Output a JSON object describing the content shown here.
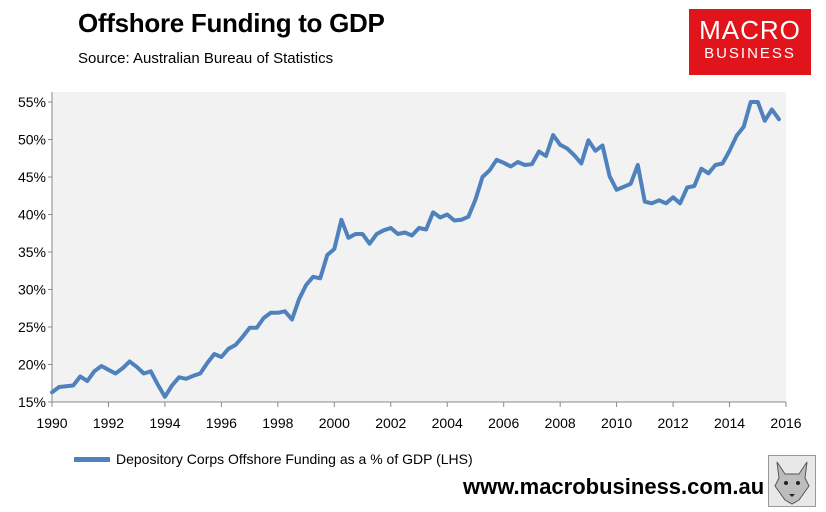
{
  "header": {
    "title": "Offshore Funding to GDP",
    "subtitle": "Source:  Australian Bureau of Statistics"
  },
  "logo": {
    "line1": "MACRO",
    "line2": "BUSINESS",
    "color": "#e1141b"
  },
  "footer": {
    "url": "www.macrobusiness.com.au",
    "mascot_icon": "wolf-icon"
  },
  "colors": {
    "series": "#4f81bd",
    "plot_bg": "#f2f2f2"
  },
  "chart_data": {
    "type": "line",
    "title": "Offshore Funding to GDP",
    "xlabel": "",
    "ylabel": "",
    "xlim": [
      1990,
      2016
    ],
    "ylim": [
      15,
      55
    ],
    "x_ticks": [
      1990,
      1992,
      1994,
      1996,
      1998,
      2000,
      2002,
      2004,
      2006,
      2008,
      2010,
      2012,
      2014,
      2016
    ],
    "x_tick_labels": [
      "1990",
      "1992",
      "1994",
      "1996",
      "1998",
      "2000",
      "2002",
      "2004",
      "2006",
      "2008",
      "2010",
      "2012",
      "2014",
      "2016"
    ],
    "y_ticks": [
      15,
      20,
      25,
      30,
      35,
      40,
      45,
      50,
      55
    ],
    "y_tick_labels": [
      "15%",
      "20%",
      "25%",
      "30%",
      "35%",
      "40%",
      "45%",
      "50%",
      "55%"
    ],
    "legend_position": "bottom-left",
    "series": [
      {
        "name": "Depository Corps Offshore Funding as a % of GDP (LHS)",
        "x": [
          1990.0,
          1990.25,
          1990.5,
          1990.75,
          1991.0,
          1991.25,
          1991.5,
          1991.75,
          1992.0,
          1992.25,
          1992.5,
          1992.75,
          1993.0,
          1993.25,
          1993.5,
          1993.75,
          1994.0,
          1994.25,
          1994.5,
          1994.75,
          1995.0,
          1995.25,
          1995.5,
          1995.75,
          1996.0,
          1996.25,
          1996.5,
          1996.75,
          1997.0,
          1997.25,
          1997.5,
          1997.75,
          1998.0,
          1998.25,
          1998.5,
          1998.75,
          1999.0,
          1999.25,
          1999.5,
          1999.75,
          2000.0,
          2000.25,
          2000.5,
          2000.75,
          2001.0,
          2001.25,
          2001.5,
          2001.75,
          2002.0,
          2002.25,
          2002.5,
          2002.75,
          2003.0,
          2003.25,
          2003.5,
          2003.75,
          2004.0,
          2004.25,
          2004.5,
          2004.75,
          2005.0,
          2005.25,
          2005.5,
          2005.75,
          2006.0,
          2006.25,
          2006.5,
          2006.75,
          2007.0,
          2007.25,
          2007.5,
          2007.75,
          2008.0,
          2008.25,
          2008.5,
          2008.75,
          2009.0,
          2009.25,
          2009.5,
          2009.75,
          2010.0,
          2010.25,
          2010.5,
          2010.75,
          2011.0,
          2011.25,
          2011.5,
          2011.75,
          2012.0,
          2012.25,
          2012.5,
          2012.75,
          2013.0,
          2013.25,
          2013.5,
          2013.75,
          2014.0,
          2014.25,
          2014.5,
          2014.75,
          2015.0,
          2015.25,
          2015.5,
          2015.75
        ],
        "values": [
          16.3,
          17.0,
          17.1,
          17.2,
          18.4,
          17.8,
          19.1,
          19.8,
          19.3,
          18.8,
          19.5,
          20.4,
          19.7,
          18.8,
          19.1,
          17.3,
          15.7,
          17.2,
          18.3,
          18.1,
          18.5,
          18.8,
          20.2,
          21.4,
          21.0,
          22.1,
          22.6,
          23.7,
          24.9,
          24.9,
          26.2,
          26.9,
          26.9,
          27.1,
          26.0,
          28.7,
          30.6,
          31.7,
          31.5,
          34.6,
          35.4,
          39.3,
          36.9,
          37.4,
          37.4,
          36.1,
          37.4,
          37.9,
          38.2,
          37.4,
          37.6,
          37.2,
          38.2,
          38.0,
          40.3,
          39.6,
          40.0,
          39.2,
          39.3,
          39.7,
          42.0,
          45.0,
          45.9,
          47.3,
          46.9,
          46.4,
          47.0,
          46.6,
          46.7,
          48.4,
          47.8,
          50.6,
          49.3,
          48.8,
          47.9,
          46.8,
          49.9,
          48.5,
          49.2,
          45.1,
          43.3,
          43.7,
          44.1,
          46.6,
          41.7,
          41.5,
          41.9,
          41.5,
          42.3,
          41.5,
          43.6,
          43.8,
          46.1,
          45.5,
          46.6,
          46.8,
          48.5,
          50.5,
          51.7,
          55.0,
          55.0,
          52.5,
          54.0,
          52.7
        ]
      }
    ]
  }
}
